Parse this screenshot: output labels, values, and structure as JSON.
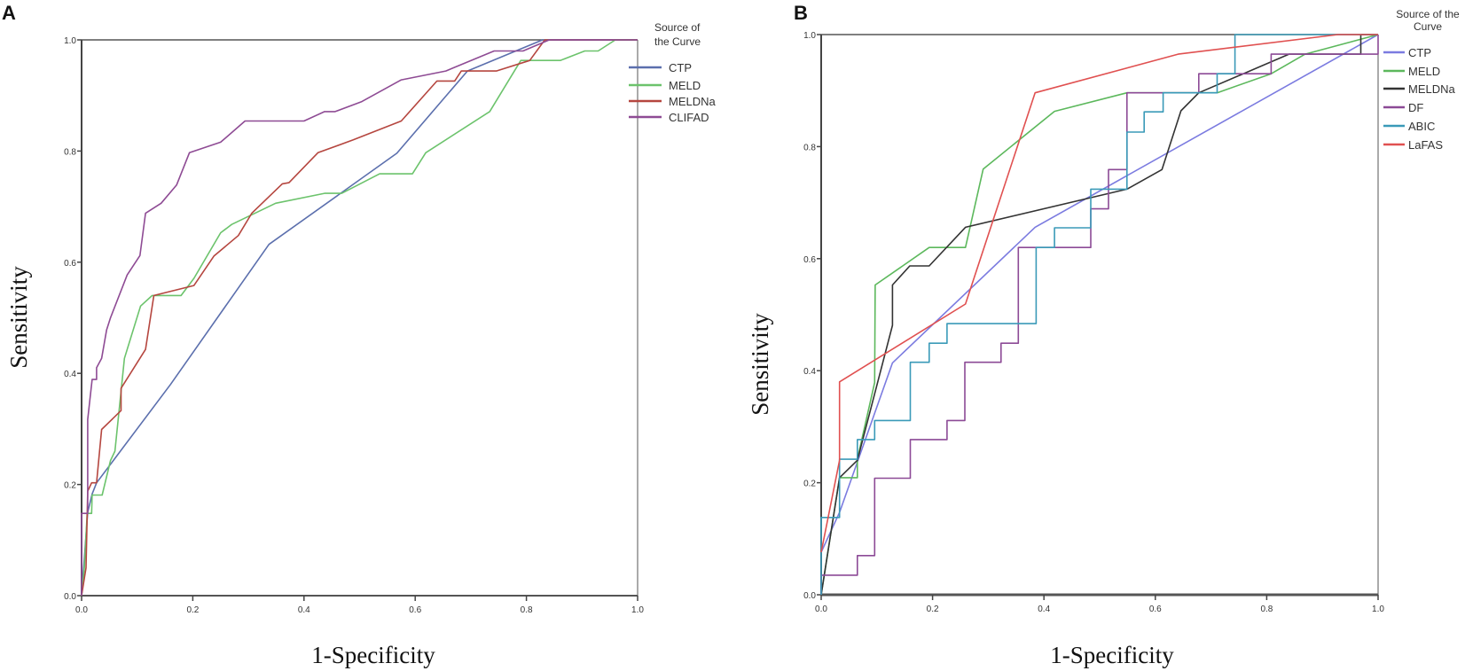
{
  "chart_data": [
    {
      "panel": "A",
      "type": "line",
      "xlabel": "1-Specificity",
      "ylabel": "Sensitivity",
      "legend_title": [
        "Source of",
        "the Curve"
      ],
      "legend_position": "right",
      "xlim": [
        0,
        1
      ],
      "ylim": [
        0,
        1
      ],
      "xticks": [
        "0.0",
        "0.2",
        "0.4",
        "0.6",
        "0.8",
        "1.0"
      ],
      "yticks": [
        "0.0",
        "0.2",
        "0.4",
        "0.6",
        "0.8",
        "1.0"
      ],
      "grid": false,
      "series": [
        {
          "name": "CTP",
          "color": "#5b6fad",
          "points": [
            [
              0,
              0
            ],
            [
              0.011,
              0.15
            ],
            [
              0.019,
              0.183
            ],
            [
              0.027,
              0.203
            ],
            [
              0.16,
              0.38
            ],
            [
              0.337,
              0.632
            ],
            [
              0.567,
              0.796
            ],
            [
              0.694,
              0.944
            ],
            [
              0.829,
              1
            ],
            [
              1,
              1
            ]
          ]
        },
        {
          "name": "MELD",
          "color": "#6cc36c",
          "points": [
            [
              0,
              0
            ],
            [
              0.005,
              0.05
            ],
            [
              0.01,
              0.148
            ],
            [
              0.018,
              0.148
            ],
            [
              0.019,
              0.181
            ],
            [
              0.037,
              0.181
            ],
            [
              0.052,
              0.243
            ],
            [
              0.06,
              0.26
            ],
            [
              0.077,
              0.427
            ],
            [
              0.106,
              0.521
            ],
            [
              0.127,
              0.54
            ],
            [
              0.179,
              0.54
            ],
            [
              0.202,
              0.571
            ],
            [
              0.25,
              0.653
            ],
            [
              0.27,
              0.668
            ],
            [
              0.349,
              0.706
            ],
            [
              0.437,
              0.724
            ],
            [
              0.468,
              0.724
            ],
            [
              0.536,
              0.759
            ],
            [
              0.595,
              0.759
            ],
            [
              0.619,
              0.797
            ],
            [
              0.734,
              0.871
            ],
            [
              0.79,
              0.963
            ],
            [
              0.861,
              0.963
            ],
            [
              0.905,
              0.98
            ],
            [
              0.929,
              0.98
            ],
            [
              0.96,
              1
            ],
            [
              1,
              1
            ]
          ]
        },
        {
          "name": "MELDNa",
          "color": "#b5463f",
          "points": [
            [
              0,
              0
            ],
            [
              0.008,
              0.05
            ],
            [
              0.011,
              0.188
            ],
            [
              0.018,
              0.203
            ],
            [
              0.027,
              0.203
            ],
            [
              0.036,
              0.299
            ],
            [
              0.071,
              0.333
            ],
            [
              0.071,
              0.373
            ],
            [
              0.115,
              0.443
            ],
            [
              0.13,
              0.54
            ],
            [
              0.202,
              0.558
            ],
            [
              0.238,
              0.611
            ],
            [
              0.282,
              0.648
            ],
            [
              0.306,
              0.688
            ],
            [
              0.361,
              0.741
            ],
            [
              0.373,
              0.743
            ],
            [
              0.425,
              0.797
            ],
            [
              0.488,
              0.82
            ],
            [
              0.575,
              0.854
            ],
            [
              0.639,
              0.926
            ],
            [
              0.671,
              0.926
            ],
            [
              0.683,
              0.944
            ],
            [
              0.746,
              0.944
            ],
            [
              0.806,
              0.963
            ],
            [
              0.833,
              1
            ],
            [
              1,
              1
            ]
          ]
        },
        {
          "name": "CLIFAD",
          "color": "#8e4b94",
          "points": [
            [
              0,
              0
            ],
            [
              0,
              0.148
            ],
            [
              0.011,
              0.148
            ],
            [
              0.011,
              0.317
            ],
            [
              0.019,
              0.389
            ],
            [
              0.027,
              0.389
            ],
            [
              0.027,
              0.41
            ],
            [
              0.036,
              0.427
            ],
            [
              0.045,
              0.478
            ],
            [
              0.052,
              0.5
            ],
            [
              0.082,
              0.577
            ],
            [
              0.105,
              0.612
            ],
            [
              0.115,
              0.688
            ],
            [
              0.143,
              0.706
            ],
            [
              0.171,
              0.739
            ],
            [
              0.194,
              0.797
            ],
            [
              0.25,
              0.816
            ],
            [
              0.294,
              0.854
            ],
            [
              0.4,
              0.854
            ],
            [
              0.437,
              0.871
            ],
            [
              0.456,
              0.871
            ],
            [
              0.504,
              0.889
            ],
            [
              0.575,
              0.928
            ],
            [
              0.655,
              0.944
            ],
            [
              0.742,
              0.98
            ],
            [
              0.794,
              0.98
            ],
            [
              0.841,
              1
            ],
            [
              1,
              1
            ]
          ]
        }
      ]
    },
    {
      "panel": "B",
      "type": "line",
      "xlabel": "1-Specificity",
      "ylabel": "Sensitivity",
      "legend_title": [
        "Source of the",
        "Curve"
      ],
      "legend_position": "right",
      "xlim": [
        0,
        1
      ],
      "ylim": [
        0,
        1
      ],
      "xticks": [
        "0.0",
        "0.2",
        "0.4",
        "0.6",
        "0.8",
        "1.0"
      ],
      "yticks": [
        "0.0",
        "0.2",
        "0.4",
        "0.6",
        "0.8",
        "1.0"
      ],
      "grid": false,
      "series": [
        {
          "name": "CTP",
          "color": "#7b7be0",
          "points": [
            [
              0,
              0.076
            ],
            [
              0.033,
              0.147
            ],
            [
              0.128,
              0.414
            ],
            [
              0.384,
              0.656
            ],
            [
              1,
              1
            ]
          ]
        },
        {
          "name": "MELD",
          "color": "#5cb85c",
          "points": [
            [
              0,
              0
            ],
            [
              0.033,
              0.209
            ],
            [
              0.065,
              0.209
            ],
            [
              0.065,
              0.242
            ],
            [
              0.096,
              0.379
            ],
            [
              0.097,
              0.553
            ],
            [
              0.194,
              0.62
            ],
            [
              0.259,
              0.62
            ],
            [
              0.291,
              0.76
            ],
            [
              0.419,
              0.863
            ],
            [
              0.549,
              0.896
            ],
            [
              0.711,
              0.896
            ],
            [
              0.808,
              0.93
            ],
            [
              0.869,
              0.965
            ],
            [
              1,
              1
            ]
          ]
        },
        {
          "name": "MELDNa",
          "color": "#333333",
          "points": [
            [
              0,
              0
            ],
            [
              0.033,
              0.209
            ],
            [
              0.065,
              0.24
            ],
            [
              0.128,
              0.481
            ],
            [
              0.128,
              0.553
            ],
            [
              0.159,
              0.587
            ],
            [
              0.194,
              0.587
            ],
            [
              0.259,
              0.656
            ],
            [
              0.549,
              0.724
            ],
            [
              0.612,
              0.759
            ],
            [
              0.646,
              0.864
            ],
            [
              0.678,
              0.896
            ],
            [
              0.84,
              0.965
            ],
            [
              0.969,
              0.965
            ],
            [
              0.969,
              1
            ],
            [
              1,
              1
            ]
          ]
        },
        {
          "name": "DF",
          "color": "#8c4a96",
          "points": [
            [
              0,
              0
            ],
            [
              0,
              0.035
            ],
            [
              0.065,
              0.035
            ],
            [
              0.065,
              0.07
            ],
            [
              0.096,
              0.07
            ],
            [
              0.096,
              0.208
            ],
            [
              0.16,
              0.208
            ],
            [
              0.16,
              0.277
            ],
            [
              0.226,
              0.277
            ],
            [
              0.226,
              0.311
            ],
            [
              0.258,
              0.311
            ],
            [
              0.258,
              0.415
            ],
            [
              0.323,
              0.415
            ],
            [
              0.323,
              0.449
            ],
            [
              0.354,
              0.449
            ],
            [
              0.354,
              0.62
            ],
            [
              0.484,
              0.62
            ],
            [
              0.484,
              0.689
            ],
            [
              0.516,
              0.689
            ],
            [
              0.516,
              0.759
            ],
            [
              0.549,
              0.759
            ],
            [
              0.549,
              0.896
            ],
            [
              0.678,
              0.896
            ],
            [
              0.678,
              0.93
            ],
            [
              0.808,
              0.93
            ],
            [
              0.808,
              0.965
            ],
            [
              1,
              0.965
            ],
            [
              1,
              1
            ]
          ]
        },
        {
          "name": "ABIC",
          "color": "#3a9ab8",
          "points": [
            [
              0,
              0
            ],
            [
              0,
              0.138
            ],
            [
              0.033,
              0.138
            ],
            [
              0.033,
              0.242
            ],
            [
              0.065,
              0.242
            ],
            [
              0.065,
              0.277
            ],
            [
              0.096,
              0.277
            ],
            [
              0.096,
              0.311
            ],
            [
              0.16,
              0.311
            ],
            [
              0.16,
              0.415
            ],
            [
              0.194,
              0.415
            ],
            [
              0.194,
              0.449
            ],
            [
              0.226,
              0.449
            ],
            [
              0.226,
              0.484
            ],
            [
              0.386,
              0.484
            ],
            [
              0.386,
              0.62
            ],
            [
              0.419,
              0.62
            ],
            [
              0.419,
              0.655
            ],
            [
              0.484,
              0.655
            ],
            [
              0.484,
              0.724
            ],
            [
              0.549,
              0.724
            ],
            [
              0.549,
              0.826
            ],
            [
              0.58,
              0.826
            ],
            [
              0.58,
              0.862
            ],
            [
              0.614,
              0.862
            ],
            [
              0.614,
              0.896
            ],
            [
              0.711,
              0.896
            ],
            [
              0.711,
              0.93
            ],
            [
              0.743,
              0.93
            ],
            [
              0.743,
              1
            ],
            [
              1,
              1
            ]
          ]
        },
        {
          "name": "LaFAS",
          "color": "#e05050",
          "points": [
            [
              0,
              0.076
            ],
            [
              0.033,
              0.24
            ],
            [
              0.033,
              0.38
            ],
            [
              0.259,
              0.519
            ],
            [
              0.384,
              0.896
            ],
            [
              0.641,
              0.965
            ],
            [
              0.928,
              1
            ],
            [
              1,
              1
            ]
          ]
        }
      ]
    }
  ]
}
